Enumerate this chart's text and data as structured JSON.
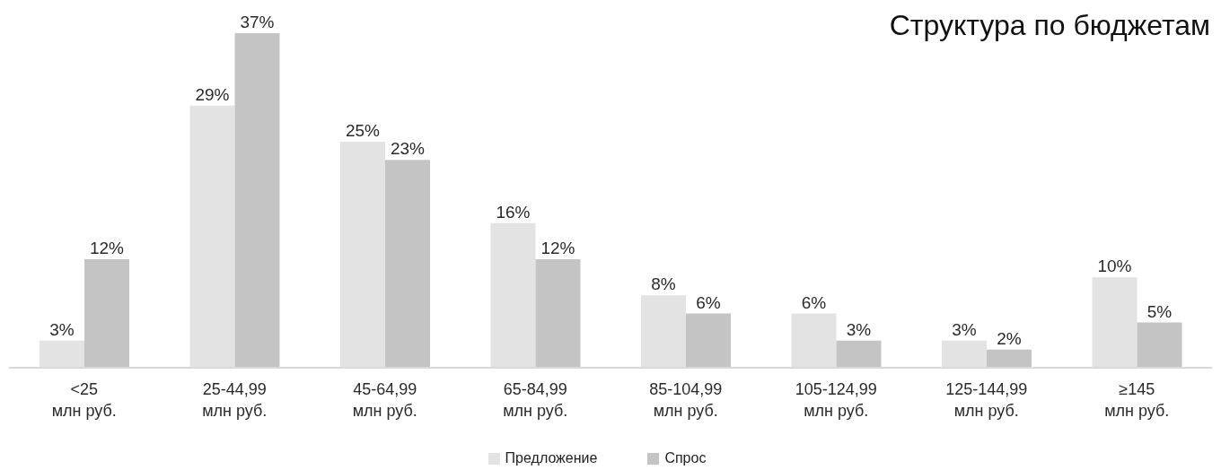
{
  "chart_data": {
    "type": "bar",
    "title": "Структура по бюджетам",
    "categories": [
      "<25\nмлн руб.",
      "25-44,99\nмлн руб.",
      "45-64,99\nмлн руб.",
      "65-84,99\nмлн руб.",
      "85-104,99\nмлн руб.",
      "105-124,99\nмлн руб.",
      "125-144,99\nмлн руб.",
      "≥145\nмлн руб."
    ],
    "series": [
      {
        "name": "Предложение",
        "color": "#e3e3e3",
        "values": [
          3,
          29,
          25,
          16,
          8,
          6,
          3,
          10
        ],
        "value_labels": [
          "3%",
          "29%",
          "25%",
          "16%",
          "8%",
          "6%",
          "3%",
          "10%"
        ]
      },
      {
        "name": "Спрос",
        "color": "#c4c4c4",
        "values": [
          12,
          37,
          23,
          12,
          6,
          3,
          2,
          5
        ],
        "value_labels": [
          "12%",
          "37%",
          "23%",
          "12%",
          "6%",
          "3%",
          "2%",
          "5%"
        ]
      }
    ],
    "tick_labels": "x",
    "legend": "bottom"
  }
}
